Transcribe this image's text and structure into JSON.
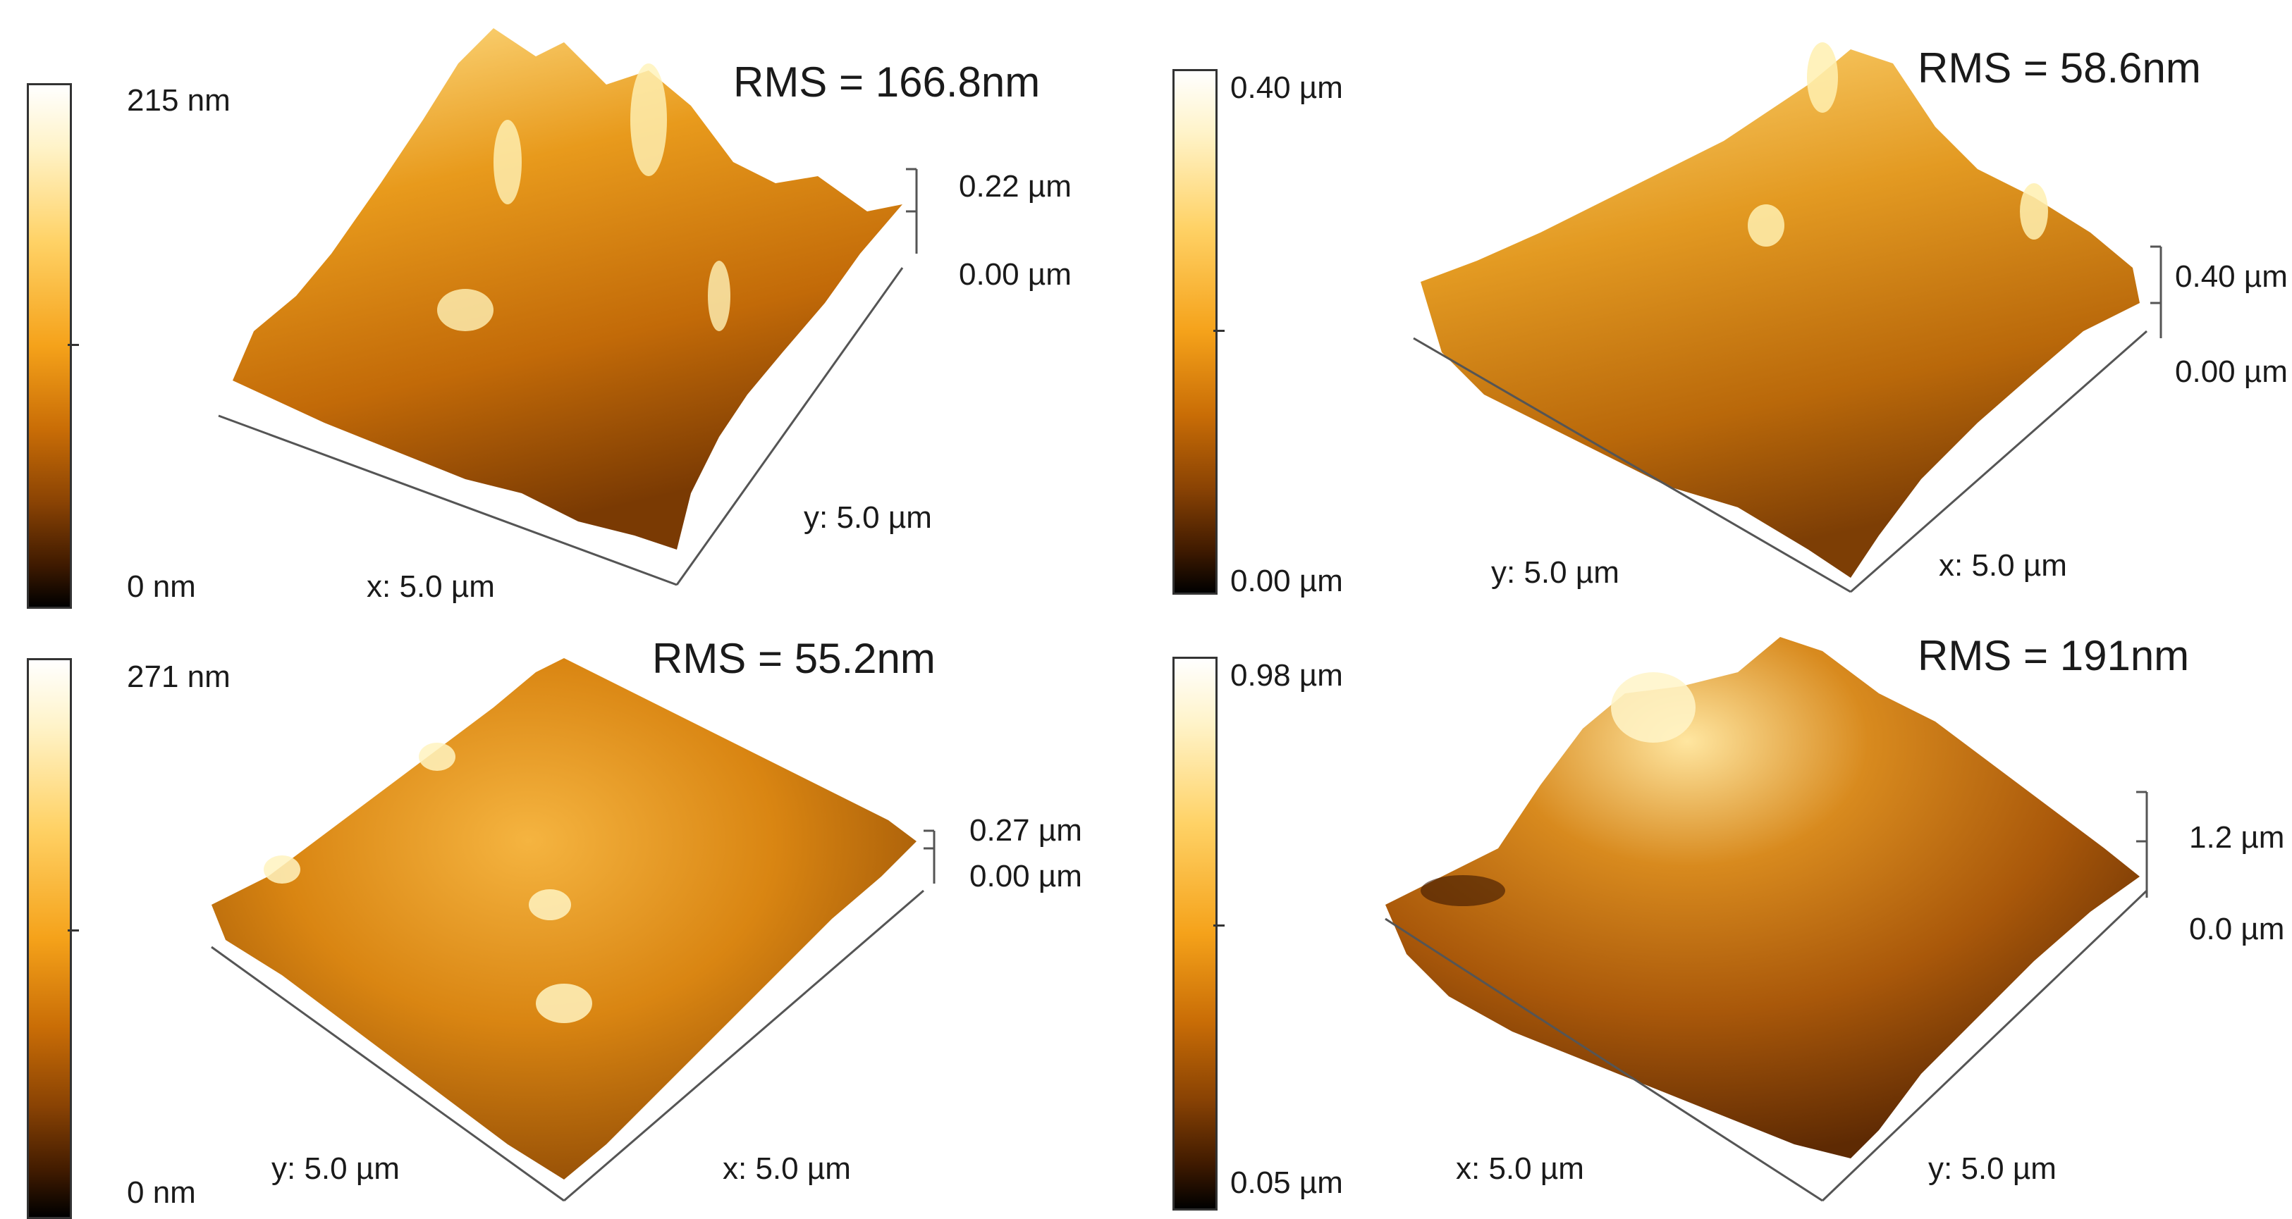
{
  "panels": [
    {
      "colorbar": {
        "max": "215 nm",
        "min": "0 nm"
      },
      "rms": "RMS = 166.8nm",
      "z_scale": {
        "top": "0.22 µm",
        "bottom": "0.00 µm"
      },
      "axis_left": "x: 5.0 µm",
      "axis_right": "y: 5.0 µm"
    },
    {
      "colorbar": {
        "max": "0.40 µm",
        "min": "0.00 µm"
      },
      "rms": "RMS = 58.6nm",
      "z_scale": {
        "top": "0.40 µm",
        "bottom": "0.00 µm"
      },
      "axis_left": "y: 5.0 µm",
      "axis_right": "x: 5.0 µm"
    },
    {
      "colorbar": {
        "max": "271 nm",
        "min": "0 nm"
      },
      "rms": "RMS = 55.2nm",
      "z_scale": {
        "top": "0.27 µm",
        "bottom": "0.00 µm"
      },
      "axis_left": "y: 5.0 µm",
      "axis_right": "x: 5.0 µm"
    },
    {
      "colorbar": {
        "max": "0.98 µm",
        "min": "0.05 µm"
      },
      "rms": "RMS = 191nm",
      "z_scale": {
        "top": "1.2 µm",
        "bottom": "0.0 µm"
      },
      "axis_left": "x: 5.0 µm",
      "axis_right": "y: 5.0 µm"
    }
  ]
}
